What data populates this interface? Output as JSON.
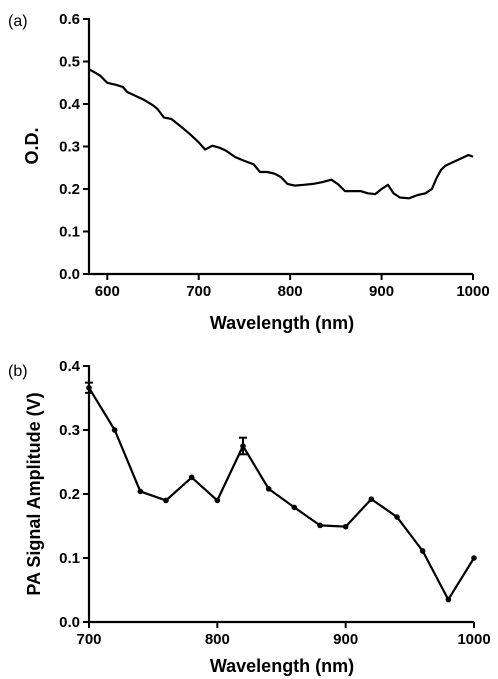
{
  "chart_data": [
    {
      "type": "line",
      "panel_label": "(a)",
      "xlabel": "Wavelength (nm)",
      "ylabel": "O.D.",
      "xlim": [
        580,
        1000
      ],
      "ylim": [
        0.0,
        0.6
      ],
      "xticks": [
        600,
        700,
        800,
        900,
        1000
      ],
      "yticks": [
        0.0,
        0.1,
        0.2,
        0.3,
        0.4,
        0.5,
        0.6
      ],
      "ytick_labels": [
        "0.0",
        "0.1",
        "0.2",
        "0.3",
        "0.4",
        "0.5",
        "0.6"
      ],
      "grid": false,
      "markers": false,
      "x": [
        580,
        592,
        600,
        610,
        617,
        622,
        630,
        640,
        650,
        655,
        662,
        670,
        680,
        690,
        700,
        707,
        715,
        723,
        730,
        740,
        750,
        760,
        767,
        775,
        783,
        790,
        797,
        805,
        815,
        825,
        835,
        845,
        852,
        860,
        867,
        877,
        885,
        893,
        900,
        907,
        913,
        920,
        930,
        940,
        948,
        955,
        960,
        965,
        970,
        980,
        990,
        995,
        1000
      ],
      "y": [
        0.482,
        0.467,
        0.45,
        0.445,
        0.44,
        0.428,
        0.42,
        0.41,
        0.397,
        0.388,
        0.368,
        0.365,
        0.348,
        0.33,
        0.31,
        0.293,
        0.302,
        0.297,
        0.29,
        0.275,
        0.266,
        0.258,
        0.24,
        0.24,
        0.236,
        0.228,
        0.212,
        0.208,
        0.21,
        0.212,
        0.216,
        0.222,
        0.212,
        0.195,
        0.195,
        0.195,
        0.19,
        0.188,
        0.2,
        0.21,
        0.19,
        0.18,
        0.178,
        0.186,
        0.19,
        0.2,
        0.225,
        0.245,
        0.255,
        0.265,
        0.275,
        0.28,
        0.276
      ]
    },
    {
      "type": "line",
      "panel_label": "(b)",
      "xlabel": "Wavelength (nm)",
      "ylabel": "PA Signal Amplitude (V)",
      "xlim": [
        700,
        1000
      ],
      "ylim": [
        0.0,
        0.4
      ],
      "xticks": [
        700,
        800,
        900,
        1000
      ],
      "yticks": [
        0.0,
        0.1,
        0.2,
        0.3,
        0.4
      ],
      "ytick_labels": [
        "0.0",
        "0.1",
        "0.2",
        "0.3",
        "0.4"
      ],
      "grid": false,
      "markers": true,
      "x": [
        700,
        720,
        740,
        760,
        780,
        800,
        820,
        840,
        860,
        880,
        900,
        920,
        940,
        960,
        980,
        1000
      ],
      "y": [
        0.366,
        0.3,
        0.204,
        0.19,
        0.226,
        0.19,
        0.275,
        0.208,
        0.179,
        0.151,
        0.149,
        0.192,
        0.164,
        0.111,
        0.035,
        0.1
      ],
      "error": [
        0.008,
        0.0,
        0.0,
        0.0,
        0.0,
        0.0,
        0.013,
        0.0,
        0.0,
        0.0,
        0.0,
        0.0,
        0.0,
        0.0,
        0.0,
        0.0
      ]
    }
  ]
}
